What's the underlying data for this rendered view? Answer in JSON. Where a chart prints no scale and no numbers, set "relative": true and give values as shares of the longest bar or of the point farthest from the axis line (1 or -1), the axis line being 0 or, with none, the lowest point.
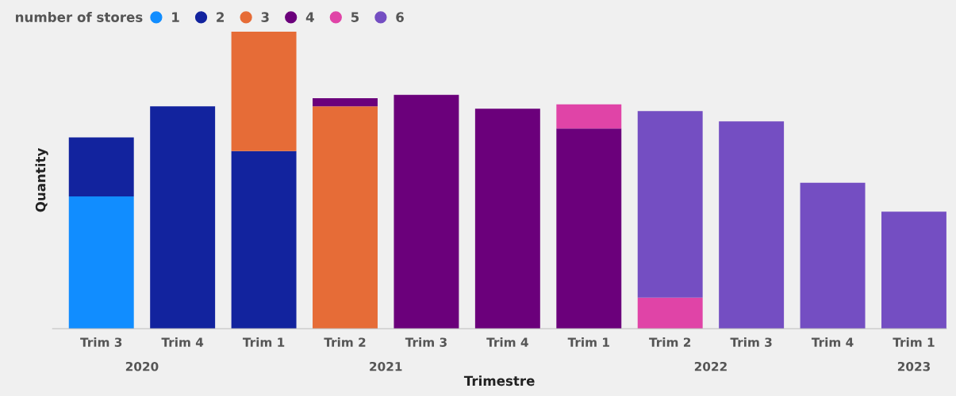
{
  "chart_data": {
    "type": "bar",
    "stacked": true,
    "relative": true,
    "xlabel": "Trimestre",
    "ylabel": "Quantity",
    "legend_title": "number of stores",
    "legend": "top left",
    "grid": false,
    "categories": [
      "Trim 3",
      "Trim 4",
      "Trim 1",
      "Trim 2",
      "Trim 3",
      "Trim 4",
      "Trim 1",
      "Trim 2",
      "Trim 3",
      "Trim 4",
      "Trim 1"
    ],
    "annotations": [
      "2020",
      "2021",
      "2022",
      "2023"
    ],
    "series": [
      {
        "name": "1",
        "color": "#118dff",
        "values": [
          0.445,
          null,
          null,
          null,
          null,
          null,
          null,
          null,
          null,
          null,
          null
        ]
      },
      {
        "name": "2",
        "color": "#12239e",
        "values": [
          0.199,
          0.749,
          0.598,
          null,
          null,
          null,
          null,
          null,
          null,
          null,
          null
        ]
      },
      {
        "name": "3",
        "color": "#e66c37",
        "values": [
          null,
          null,
          0.402,
          0.749,
          null,
          null,
          null,
          null,
          null,
          null,
          null
        ]
      },
      {
        "name": "4",
        "color": "#6b007b",
        "values": [
          null,
          null,
          null,
          0.027,
          0.787,
          0.741,
          0.674,
          null,
          null,
          null,
          null
        ]
      },
      {
        "name": "5",
        "color": "#e044a7",
        "values": [
          null,
          null,
          null,
          null,
          null,
          null,
          0.081,
          0.105,
          null,
          null,
          null
        ]
      },
      {
        "name": "6",
        "color": "#744ec2",
        "values": [
          null,
          null,
          null,
          null,
          null,
          null,
          null,
          0.628,
          0.698,
          0.491,
          0.394
        ]
      }
    ]
  }
}
